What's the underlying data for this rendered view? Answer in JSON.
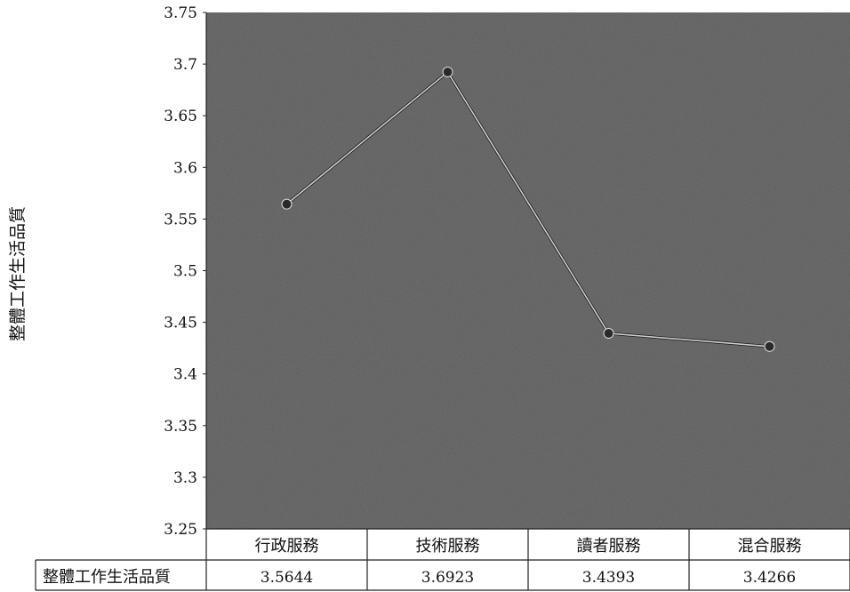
{
  "chart_data": {
    "type": "line",
    "title": "",
    "xlabel": "",
    "ylabel": "整體工作生活品質",
    "categories": [
      "行政服務",
      "技術服務",
      "讀者服務",
      "混合服務"
    ],
    "series": [
      {
        "name": "整體工作生活品質",
        "values": [
          3.5644,
          3.6923,
          3.4393,
          3.4266
        ]
      }
    ],
    "value_labels": [
      "3.5644",
      "3.6923",
      "3.4393",
      "3.4266"
    ],
    "ylim": [
      3.25,
      3.75
    ],
    "yticks": [
      "3.75",
      "3.7",
      "3.65",
      "3.6",
      "3.55",
      "3.5",
      "3.45",
      "3.4",
      "3.35",
      "3.3",
      "3.25"
    ],
    "grid": false,
    "legend": "data-table-below",
    "plot_background": "#6e6e6e",
    "line_color": "#cfcfcf",
    "marker_color": "#2a2a2a"
  }
}
